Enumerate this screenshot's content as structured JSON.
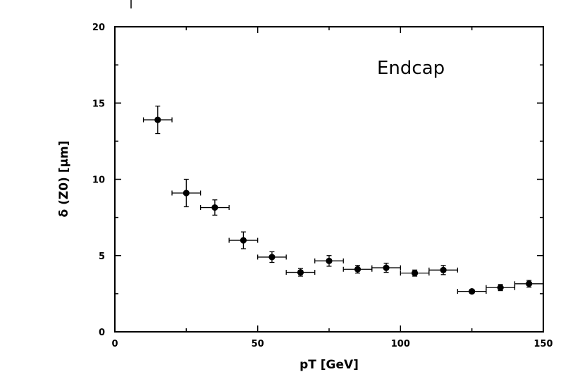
{
  "chart_data": {
    "type": "scatter",
    "title": "",
    "xlabel": "pT [GeV]",
    "ylabel": "δ (Z0) [μm]",
    "xlim": [
      0,
      150
    ],
    "ylim": [
      0,
      20
    ],
    "xticks": [
      0,
      50,
      100,
      150
    ],
    "yticks": [
      0,
      5,
      10,
      15,
      20
    ],
    "xtick_labels": [
      "0",
      "50",
      "100",
      "150"
    ],
    "ytick_labels": [
      "0",
      "5",
      "10",
      "15",
      "20"
    ],
    "grid": false,
    "legend": "none",
    "annotation": "Endcap",
    "marker_color": "#000000",
    "series": [
      {
        "x": [
          15,
          25,
          35,
          45,
          55,
          65,
          75,
          85,
          95,
          105,
          115,
          125,
          135,
          145
        ],
        "y": [
          13.9,
          9.1,
          8.15,
          6.0,
          4.9,
          3.9,
          4.65,
          4.1,
          4.2,
          3.85,
          4.05,
          2.65,
          2.9,
          3.15
        ],
        "xerr": [
          5,
          5,
          5,
          5,
          5,
          5,
          5,
          5,
          5,
          5,
          5,
          5,
          5,
          5
        ],
        "yerr": [
          0.9,
          0.9,
          0.5,
          0.55,
          0.35,
          0.25,
          0.35,
          0.25,
          0.3,
          0.2,
          0.3,
          0.12,
          0.2,
          0.22
        ]
      }
    ]
  }
}
